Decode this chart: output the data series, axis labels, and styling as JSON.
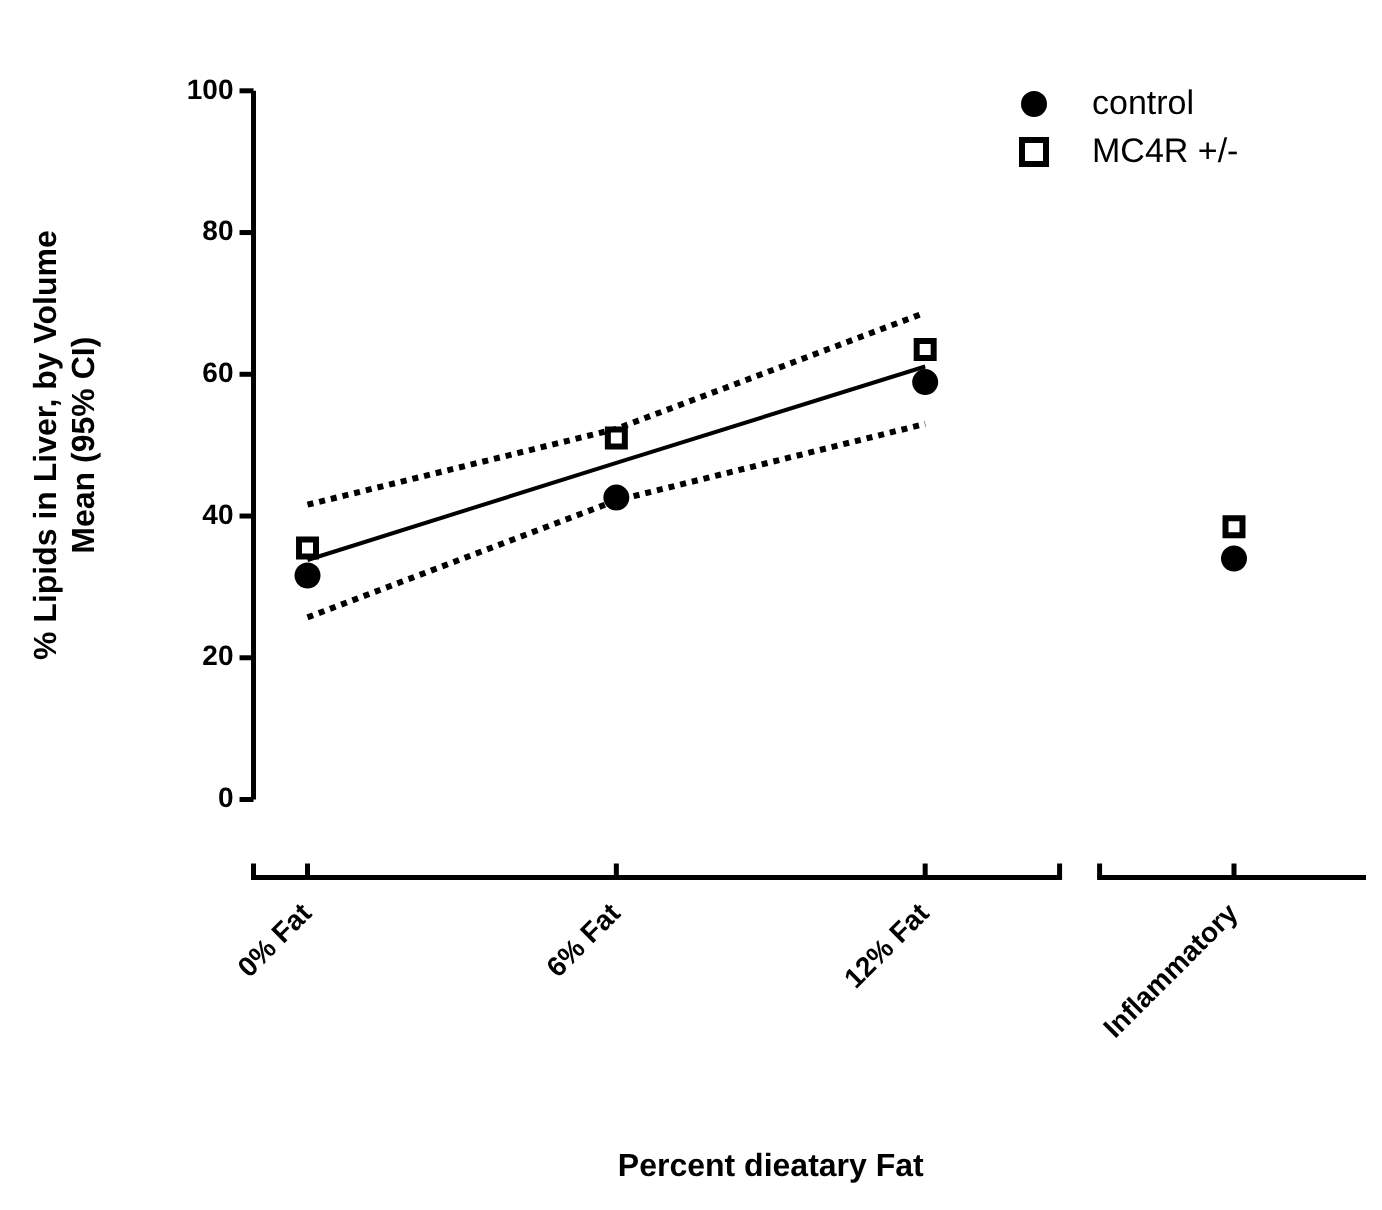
{
  "chart_data": {
    "type": "scatter",
    "xlabel": "Percent dieatary Fat",
    "ylabel": "% Lipids in Liver, by Volume\nMean (95% CI)",
    "categories": [
      "0% Fat",
      "6% Fat",
      "12% Fat",
      "Inflammatory"
    ],
    "ylim": [
      0,
      100
    ],
    "yticks": [
      0,
      20,
      40,
      60,
      80,
      100
    ],
    "legend": "top right",
    "series": [
      {
        "name": "control",
        "color": "#000000",
        "marker": "circle",
        "values": [
          31.6,
          42.6,
          58.9,
          34
        ]
      },
      {
        "name": "MC4R +/-",
        "color": "#000000",
        "marker": "square",
        "values": [
          35.5,
          51,
          63.5,
          38.5
        ]
      },
      {
        "type": "line",
        "color": "#000000",
        "marker": "none",
        "line_style": "solid",
        "values": [
          33.8,
          47.5,
          61.1,
          null
        ]
      },
      {
        "type": "line",
        "color": "#000000",
        "marker": "none",
        "line_style": "dotted",
        "values": [
          41.6,
          52.3,
          68.7,
          null
        ]
      },
      {
        "type": "line",
        "color": "#000000",
        "marker": "none",
        "line_style": "dotted",
        "values": [
          25.7,
          42.2,
          53,
          null
        ]
      }
    ]
  }
}
